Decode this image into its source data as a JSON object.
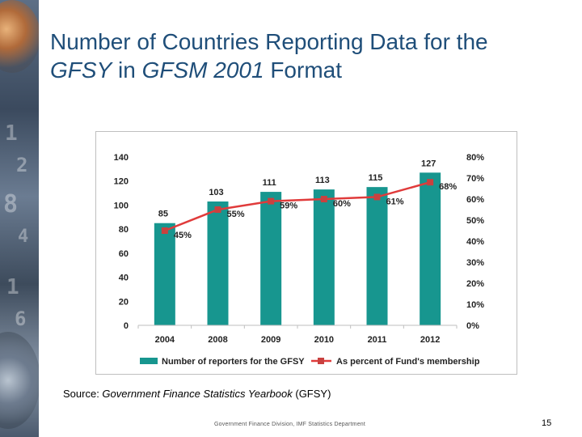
{
  "slide": {
    "title_part1": "Number of Countries Reporting Data for the",
    "title_italic1": "GFSY",
    "title_part2": " in ",
    "title_italic2": "GFSM 2001",
    "title_part3": " Format",
    "source_prefix": "Source: ",
    "source_italic": "Government Finance Statistics Yearbook",
    "source_suffix": " (GFSY)",
    "footer": "Government Finance Division, IMF Statistics Department",
    "page_number": "15"
  },
  "chart_data": {
    "type": "bar",
    "categories": [
      "2004",
      "2008",
      "2009",
      "2010",
      "2011",
      "2012"
    ],
    "series": [
      {
        "name": "Number of reporters for the GFSY",
        "type": "bar",
        "axis": "left",
        "values": [
          85,
          103,
          111,
          113,
          115,
          127
        ],
        "labels": [
          "85",
          "103",
          "111",
          "113",
          "115",
          "127"
        ]
      },
      {
        "name": "As percent of Fund's membership",
        "type": "line",
        "axis": "right",
        "values": [
          45,
          55,
          59,
          60,
          61,
          68
        ],
        "labels": [
          "45%",
          "55%",
          "59%",
          "60%",
          "61%",
          "68%"
        ]
      }
    ],
    "ylim": [
      0,
      140
    ],
    "yticks": [
      "0",
      "20",
      "40",
      "60",
      "80",
      "100",
      "120",
      "140"
    ],
    "y2lim": [
      0,
      80
    ],
    "y2ticks": [
      "0%",
      "10%",
      "20%",
      "30%",
      "40%",
      "50%",
      "60%",
      "70%",
      "80%"
    ],
    "legend_position": "bottom",
    "grid": false,
    "colors": {
      "bar": "#17968f",
      "line": "#e03b3b",
      "marker": "#c9413f"
    }
  }
}
